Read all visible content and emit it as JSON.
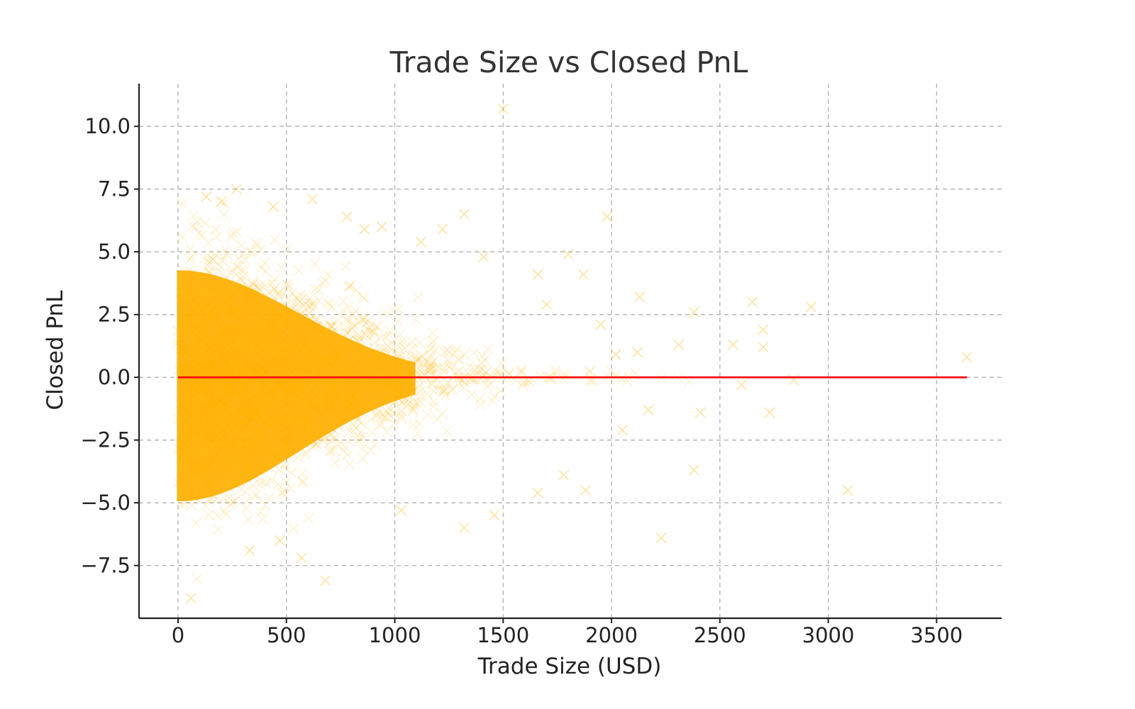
{
  "chart_data": {
    "type": "scatter",
    "title": "Trade Size vs Closed PnL",
    "xlabel": "Trade Size (USD)",
    "ylabel": "Closed PnL",
    "xlim": [
      -180,
      3800
    ],
    "ylim": [
      -9.6,
      11.7
    ],
    "xticks": [
      0,
      500,
      1000,
      1500,
      2000,
      2500,
      3000,
      3500
    ],
    "xtick_labels": [
      "0",
      "500",
      "1000",
      "1500",
      "2000",
      "2500",
      "3000",
      "3500"
    ],
    "yticks": [
      10.0,
      7.5,
      5.0,
      2.5,
      0.0,
      -2.5,
      -5.0,
      -7.5
    ],
    "ytick_labels": [
      "10.0",
      "7.5",
      "5.0",
      "2.5",
      "0.0",
      "−2.5",
      "−5.0",
      "−7.5"
    ],
    "grid": true,
    "series": [
      {
        "marker": "x",
        "color": "#ffb000",
        "points": [
          [
            1500,
            10.7
          ],
          [
            270,
            7.5
          ],
          [
            620,
            7.1
          ],
          [
            130,
            7.2
          ],
          [
            1320,
            6.5
          ],
          [
            780,
            6.4
          ],
          [
            1980,
            6.4
          ],
          [
            940,
            6.0
          ],
          [
            1220,
            5.9
          ],
          [
            1660,
            4.1
          ],
          [
            1800,
            4.9
          ],
          [
            1870,
            4.1
          ],
          [
            2130,
            3.2
          ],
          [
            2650,
            3.0
          ],
          [
            2380,
            2.6
          ],
          [
            2920,
            2.8
          ],
          [
            2700,
            1.9
          ],
          [
            2560,
            1.3
          ],
          [
            2310,
            1.3
          ],
          [
            2700,
            1.2
          ],
          [
            2120,
            1.0
          ],
          [
            3640,
            0.8
          ],
          [
            2020,
            0.9
          ],
          [
            2410,
            -1.4
          ],
          [
            2730,
            -1.4
          ],
          [
            2170,
            -1.3
          ],
          [
            2380,
            -3.7
          ],
          [
            2230,
            -6.4
          ],
          [
            1880,
            -4.5
          ],
          [
            1660,
            -4.6
          ],
          [
            3090,
            -4.5
          ],
          [
            1320,
            -6.0
          ],
          [
            680,
            -8.1
          ],
          [
            60,
            -8.8
          ],
          [
            570,
            -7.2
          ],
          [
            1460,
            -5.5
          ],
          [
            1780,
            -3.9
          ],
          [
            2050,
            -2.1
          ],
          [
            2600,
            -0.3
          ],
          [
            2840,
            -0.1
          ],
          [
            1950,
            2.1
          ],
          [
            1700,
            2.9
          ],
          [
            1410,
            4.8
          ],
          [
            1120,
            5.4
          ],
          [
            860,
            5.9
          ],
          [
            440,
            6.8
          ],
          [
            200,
            7.0
          ],
          [
            330,
            -6.9
          ],
          [
            470,
            -6.5
          ],
          [
            1030,
            -5.3
          ]
        ]
      }
    ],
    "trend_line": {
      "color": "#ff0000",
      "x": [
        0,
        3640
      ],
      "y": [
        0.0,
        0.0
      ]
    }
  }
}
